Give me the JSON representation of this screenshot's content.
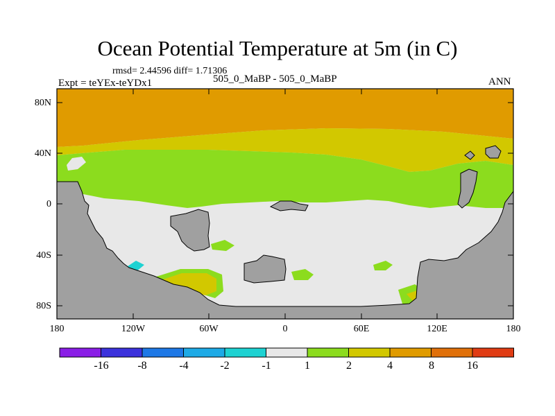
{
  "title": "Ocean Potential Temperature at 5m (in C)",
  "stats": "rmsd= 2.44596 diff= 1.71306",
  "expt_label": "Expt = teYEx-teYDx1",
  "center_label": "505_0_MaBP - 505_0_MaBP",
  "season": "ANN",
  "y_ticks": [
    "80N",
    "40N",
    "0",
    "40S",
    "80S"
  ],
  "x_ticks": [
    "180",
    "120W",
    "60W",
    "0",
    "60E",
    "120E",
    "180"
  ],
  "colorbar": {
    "colors": [
      "#8a1ee6",
      "#3c32dc",
      "#1e78e6",
      "#1eaae6",
      "#1ed2d2",
      "#e8e8e8",
      "#8cdc1e",
      "#d2c800",
      "#e09b00",
      "#e0700a",
      "#e03c14"
    ],
    "labels": [
      "-16",
      "-8",
      "-4",
      "-2",
      "-1",
      "1",
      "2",
      "4",
      "8",
      "16"
    ]
  },
  "map_colors": {
    "land": "#a0a0a0",
    "neutral": "#e8e8e8",
    "green": "#8cdc1e",
    "yellow": "#d2c800",
    "orange": "#e09b00",
    "cyan": "#1ed2d2"
  }
}
